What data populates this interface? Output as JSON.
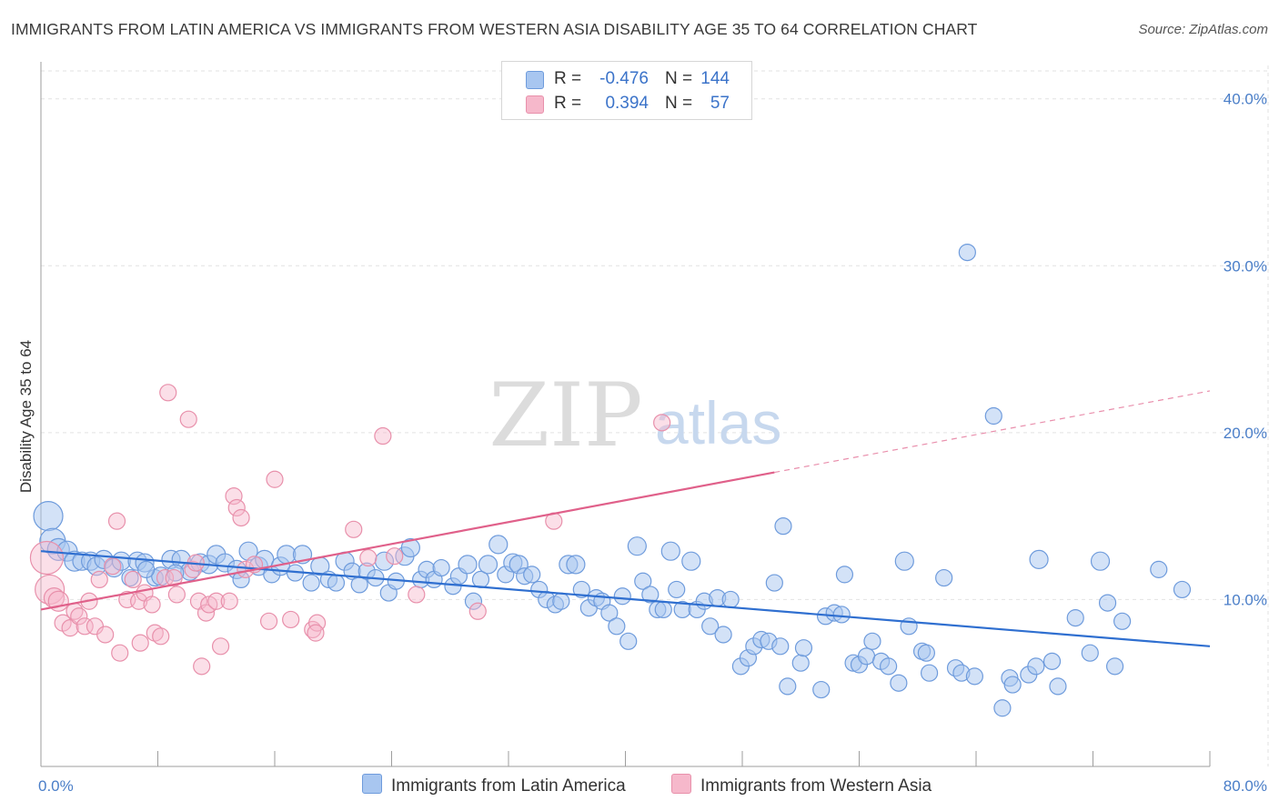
{
  "header": {
    "title": "IMMIGRANTS FROM LATIN AMERICA VS IMMIGRANTS FROM WESTERN ASIA DISABILITY AGE 35 TO 64 CORRELATION CHART",
    "source": "Source: ZipAtlas.com"
  },
  "watermark": {
    "zip": "ZIP",
    "atlas": "atlas"
  },
  "legend": {
    "rows": [
      {
        "r_label": "R =",
        "r_value": "-0.476",
        "n_label": "N =",
        "n_value": "144",
        "color": "#a8c6f0"
      },
      {
        "r_label": "R =",
        "r_value": "0.394",
        "n_label": "N =",
        "n_value": "57",
        "color": "#f6b8cb"
      }
    ]
  },
  "bottom_legend": {
    "series1": "Immigrants from Latin America",
    "series2": "Immigrants from Western Asia"
  },
  "colors": {
    "blue_fill": "#a8c6f0",
    "blue_stroke": "#6e9bdc",
    "blue_line": "#2f6fd0",
    "pink_fill": "#f6b8cb",
    "pink_stroke": "#e890ab",
    "pink_line": "#e0608a",
    "tick_text": "#4a7ec8"
  },
  "chart_data": {
    "type": "scatter",
    "title": "IMMIGRANTS FROM LATIN AMERICA VS IMMIGRANTS FROM WESTERN ASIA DISABILITY AGE 35 TO 64 CORRELATION CHART",
    "xlabel": "",
    "ylabel": "Disability Age 35 to 64",
    "xlim": [
      0,
      80
    ],
    "ylim": [
      0,
      42
    ],
    "x_tick_labels": [
      "0.0%",
      "80.0%"
    ],
    "y_ticks": [
      10,
      20,
      30,
      40
    ],
    "y_tick_labels": [
      "10.0%",
      "20.0%",
      "30.0%",
      "40.0%"
    ],
    "grid": true,
    "series": [
      {
        "name": "Immigrants from Latin America",
        "color": "#a8c6f0",
        "trend": {
          "x": [
            0,
            80
          ],
          "y": [
            12.9,
            7.2
          ],
          "style": "solid"
        },
        "points": [
          [
            0.5,
            15.0,
            16
          ],
          [
            0.8,
            13.5,
            14
          ],
          [
            1.2,
            13.0,
            12
          ],
          [
            1.8,
            12.9,
            11
          ],
          [
            2.3,
            12.3,
            11
          ],
          [
            2.8,
            12.3,
            10
          ],
          [
            3.4,
            12.3,
            10
          ],
          [
            3.8,
            12.0,
            10
          ],
          [
            4.3,
            12.4,
            10
          ],
          [
            5.0,
            11.9,
            10
          ],
          [
            5.5,
            12.3,
            10
          ],
          [
            6.1,
            11.3,
            9
          ],
          [
            6.6,
            12.3,
            10
          ],
          [
            7.1,
            12.2,
            10
          ],
          [
            7.8,
            11.3,
            9
          ],
          [
            8.2,
            11.4,
            10
          ],
          [
            8.9,
            12.4,
            10
          ],
          [
            9.6,
            12.4,
            10
          ],
          [
            10.2,
            11.7,
            10
          ],
          [
            10.9,
            12.2,
            10
          ],
          [
            11.5,
            12.1,
            10
          ],
          [
            12.0,
            12.7,
            10
          ],
          [
            12.6,
            12.2,
            10
          ],
          [
            13.4,
            11.8,
            10
          ],
          [
            13.7,
            11.2,
            9
          ],
          [
            14.2,
            12.9,
            10
          ],
          [
            14.9,
            12.0,
            10
          ],
          [
            15.3,
            12.4,
            10
          ],
          [
            15.8,
            11.5,
            9
          ],
          [
            16.4,
            12.0,
            10
          ],
          [
            16.8,
            12.7,
            10
          ],
          [
            17.4,
            11.6,
            9
          ],
          [
            17.9,
            12.7,
            10
          ],
          [
            18.5,
            11.0,
            9
          ],
          [
            19.1,
            12.0,
            10
          ],
          [
            19.7,
            11.2,
            9
          ],
          [
            20.2,
            11.0,
            9
          ],
          [
            20.8,
            12.3,
            10
          ],
          [
            21.3,
            11.7,
            9
          ],
          [
            21.8,
            10.9,
            9
          ],
          [
            22.3,
            11.7,
            9
          ],
          [
            22.9,
            11.3,
            9
          ],
          [
            23.5,
            12.3,
            10
          ],
          [
            23.8,
            10.4,
            9
          ],
          [
            24.3,
            11.1,
            9
          ],
          [
            24.9,
            12.6,
            10
          ],
          [
            25.3,
            13.1,
            10
          ],
          [
            26.0,
            11.2,
            9
          ],
          [
            26.4,
            11.8,
            9
          ],
          [
            26.9,
            11.2,
            9
          ],
          [
            27.4,
            11.9,
            9
          ],
          [
            28.2,
            10.8,
            9
          ],
          [
            28.6,
            11.4,
            9
          ],
          [
            29.2,
            12.1,
            10
          ],
          [
            29.6,
            9.9,
            9
          ],
          [
            30.1,
            11.2,
            9
          ],
          [
            30.6,
            12.1,
            10
          ],
          [
            31.3,
            13.3,
            10
          ],
          [
            31.8,
            11.5,
            9
          ],
          [
            32.3,
            12.2,
            10
          ],
          [
            32.7,
            12.1,
            10
          ],
          [
            33.1,
            11.4,
            9
          ],
          [
            33.6,
            11.5,
            9
          ],
          [
            34.1,
            10.6,
            9
          ],
          [
            34.6,
            10.0,
            9
          ],
          [
            35.2,
            9.7,
            9
          ],
          [
            35.6,
            9.9,
            9
          ],
          [
            36.1,
            12.1,
            10
          ],
          [
            36.6,
            12.1,
            10
          ],
          [
            37.0,
            10.6,
            9
          ],
          [
            37.5,
            9.5,
            9
          ],
          [
            38.0,
            10.1,
            9
          ],
          [
            38.4,
            9.9,
            9
          ],
          [
            38.9,
            9.2,
            9
          ],
          [
            39.4,
            8.4,
            9
          ],
          [
            39.8,
            10.2,
            9
          ],
          [
            40.2,
            7.5,
            9
          ],
          [
            40.8,
            13.2,
            10
          ],
          [
            41.2,
            11.1,
            9
          ],
          [
            41.7,
            10.3,
            9
          ],
          [
            42.2,
            9.4,
            9
          ],
          [
            42.6,
            9.4,
            9
          ],
          [
            43.1,
            12.9,
            10
          ],
          [
            43.5,
            10.6,
            9
          ],
          [
            43.9,
            9.4,
            9
          ],
          [
            44.5,
            12.3,
            10
          ],
          [
            44.9,
            9.4,
            9
          ],
          [
            45.4,
            9.9,
            9
          ],
          [
            45.8,
            8.4,
            9
          ],
          [
            46.3,
            10.1,
            9
          ],
          [
            46.7,
            7.9,
            9
          ],
          [
            47.2,
            10.0,
            9
          ],
          [
            47.9,
            6.0,
            9
          ],
          [
            48.4,
            6.5,
            9
          ],
          [
            48.8,
            7.2,
            9
          ],
          [
            49.3,
            7.6,
            9
          ],
          [
            49.8,
            7.5,
            9
          ],
          [
            50.2,
            11.0,
            9
          ],
          [
            50.6,
            7.2,
            9
          ],
          [
            50.8,
            14.4,
            9
          ],
          [
            51.1,
            4.8,
            9
          ],
          [
            52.0,
            6.2,
            9
          ],
          [
            52.2,
            7.1,
            9
          ],
          [
            53.4,
            4.6,
            9
          ],
          [
            53.7,
            9.0,
            9
          ],
          [
            54.3,
            9.2,
            9
          ],
          [
            54.8,
            9.1,
            9
          ],
          [
            55.0,
            11.5,
            9
          ],
          [
            55.6,
            6.2,
            9
          ],
          [
            56.0,
            6.1,
            9
          ],
          [
            56.5,
            6.6,
            9
          ],
          [
            56.9,
            7.5,
            9
          ],
          [
            57.5,
            6.3,
            9
          ],
          [
            58.0,
            6.0,
            9
          ],
          [
            58.7,
            5.0,
            9
          ],
          [
            59.1,
            12.3,
            10
          ],
          [
            59.4,
            8.4,
            9
          ],
          [
            60.3,
            6.9,
            9
          ],
          [
            60.6,
            6.8,
            9
          ],
          [
            60.8,
            5.6,
            9
          ],
          [
            61.8,
            11.3,
            9
          ],
          [
            62.6,
            5.9,
            9
          ],
          [
            63.0,
            5.6,
            9
          ],
          [
            63.9,
            5.4,
            9
          ],
          [
            63.4,
            30.8,
            9
          ],
          [
            65.2,
            21.0,
            9
          ],
          [
            65.8,
            3.5,
            9
          ],
          [
            66.3,
            5.3,
            9
          ],
          [
            66.5,
            4.9,
            9
          ],
          [
            67.6,
            5.5,
            9
          ],
          [
            68.1,
            6.0,
            9
          ],
          [
            68.3,
            12.4,
            10
          ],
          [
            69.2,
            6.3,
            9
          ],
          [
            69.6,
            4.8,
            9
          ],
          [
            70.8,
            8.9,
            9
          ],
          [
            71.8,
            6.8,
            9
          ],
          [
            72.5,
            12.3,
            10
          ],
          [
            73.0,
            9.8,
            9
          ],
          [
            73.5,
            6.0,
            9
          ],
          [
            74.0,
            8.7,
            9
          ],
          [
            76.5,
            11.8,
            9
          ],
          [
            78.1,
            10.6,
            9
          ],
          [
            7.2,
            11.8,
            9
          ],
          [
            9.2,
            11.6,
            9
          ]
        ]
      },
      {
        "name": "Immigrants from Western Asia",
        "color": "#f6b8cb",
        "trend": {
          "x": [
            0,
            80
          ],
          "y": [
            9.4,
            22.5
          ],
          "solid_until_x": 50.2
        },
        "points": [
          [
            0.4,
            12.5,
            18
          ],
          [
            0.6,
            10.6,
            16
          ],
          [
            0.9,
            10.1,
            11
          ],
          [
            1.2,
            9.9,
            11
          ],
          [
            1.5,
            8.6,
            9
          ],
          [
            2.0,
            8.3,
            9
          ],
          [
            2.3,
            9.3,
            9
          ],
          [
            2.6,
            9.0,
            9
          ],
          [
            3.0,
            8.4,
            9
          ],
          [
            3.3,
            9.9,
            9
          ],
          [
            3.7,
            8.4,
            9
          ],
          [
            4.0,
            11.2,
            9
          ],
          [
            4.4,
            7.9,
            9
          ],
          [
            4.9,
            12.0,
            9
          ],
          [
            5.2,
            14.7,
            9
          ],
          [
            5.4,
            6.8,
            9
          ],
          [
            5.9,
            10.0,
            9
          ],
          [
            6.3,
            11.2,
            9
          ],
          [
            6.7,
            9.9,
            9
          ],
          [
            6.8,
            7.4,
            9
          ],
          [
            7.1,
            10.4,
            9
          ],
          [
            7.6,
            9.7,
            9
          ],
          [
            7.8,
            8.0,
            9
          ],
          [
            8.2,
            7.8,
            9
          ],
          [
            8.5,
            11.3,
            9
          ],
          [
            8.7,
            22.4,
            9
          ],
          [
            9.1,
            11.3,
            9
          ],
          [
            9.3,
            10.3,
            9
          ],
          [
            10.1,
            20.8,
            9
          ],
          [
            10.4,
            11.8,
            9
          ],
          [
            10.6,
            12.2,
            9
          ],
          [
            10.8,
            9.9,
            9
          ],
          [
            11.0,
            6.0,
            9
          ],
          [
            11.3,
            9.2,
            9
          ],
          [
            11.5,
            9.7,
            9
          ],
          [
            12.0,
            9.9,
            9
          ],
          [
            12.3,
            7.2,
            9
          ],
          [
            12.9,
            9.9,
            9
          ],
          [
            13.2,
            16.2,
            9
          ],
          [
            13.4,
            15.5,
            9
          ],
          [
            13.7,
            14.9,
            9
          ],
          [
            14.0,
            11.8,
            9
          ],
          [
            14.6,
            12.1,
            9
          ],
          [
            15.6,
            8.7,
            9
          ],
          [
            16.0,
            17.2,
            9
          ],
          [
            17.1,
            8.8,
            9
          ],
          [
            18.6,
            8.2,
            9
          ],
          [
            18.9,
            8.6,
            9
          ],
          [
            18.8,
            8.0,
            9
          ],
          [
            21.4,
            14.2,
            9
          ],
          [
            22.4,
            12.5,
            9
          ],
          [
            23.4,
            19.8,
            9
          ],
          [
            24.2,
            12.6,
            9
          ],
          [
            25.7,
            10.3,
            9
          ],
          [
            29.9,
            9.3,
            9
          ],
          [
            35.1,
            14.7,
            9
          ],
          [
            42.5,
            20.6,
            9
          ]
        ]
      }
    ]
  }
}
